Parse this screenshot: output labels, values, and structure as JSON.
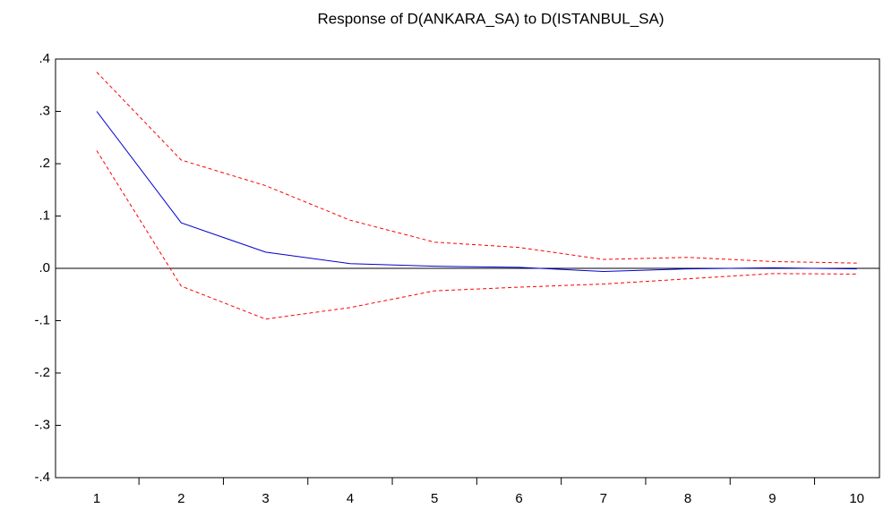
{
  "chart_data": {
    "type": "line",
    "title": "Response of D(ANKARA_SA) to D(ISTANBUL_SA)",
    "categories": [
      "1",
      "2",
      "3",
      "4",
      "5",
      "6",
      "7",
      "8",
      "9",
      "10"
    ],
    "series": [
      {
        "color": "#0000cc",
        "dash": false,
        "values": [
          0.3,
          0.087,
          0.031,
          0.009,
          0.004,
          0.002,
          -0.006,
          -0.001,
          0.001,
          -0.001
        ]
      },
      {
        "color": "#ff0000",
        "dash": true,
        "values": [
          0.375,
          0.207,
          0.158,
          0.092,
          0.05,
          0.04,
          0.017,
          0.021,
          0.013,
          0.01
        ]
      },
      {
        "color": "#ff0000",
        "dash": true,
        "values": [
          0.225,
          -0.034,
          -0.097,
          -0.075,
          -0.043,
          -0.036,
          -0.03,
          -0.02,
          -0.01,
          -0.011
        ]
      }
    ],
    "ylim": [
      -0.4,
      0.4
    ],
    "yticks": [
      {
        "value": -0.4,
        "label": "-.4"
      },
      {
        "value": -0.3,
        "label": "-.3"
      },
      {
        "value": -0.2,
        "label": "-.2"
      },
      {
        "value": -0.1,
        "label": "-.1"
      },
      {
        "value": 0,
        "label": ".0"
      },
      {
        "value": 0.1,
        "label": ".1"
      },
      {
        "value": 0.2,
        "label": ".2"
      },
      {
        "value": 0.3,
        "label": ".3"
      },
      {
        "value": 0.4,
        "label": ".4"
      }
    ],
    "grid": false
  }
}
